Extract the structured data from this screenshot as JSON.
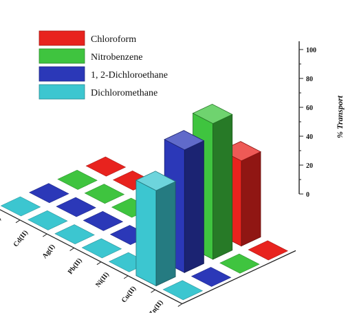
{
  "chart_data": {
    "type": "bar",
    "subtype": "3d-grouped-bar",
    "zlabel": "% Transport",
    "zlim": [
      0,
      100
    ],
    "zticks": [
      0,
      20,
      40,
      60,
      80,
      100
    ],
    "categories": [
      "Co(II)",
      "Cd(II)",
      "Ag(I)",
      "Pb(II)",
      "Ni(II)",
      "Cu(II)",
      "Zn(II)"
    ],
    "series": [
      {
        "name": "Chloroform",
        "color": "#e8231e",
        "values": [
          0,
          0,
          0,
          0,
          0,
          59,
          0
        ]
      },
      {
        "name": "Nitrobenzene",
        "color": "#3fc43f",
        "values": [
          0,
          0,
          0,
          0,
          0,
          94,
          0
        ]
      },
      {
        "name": "1, 2-Dichloroethane",
        "color": "#2b38b8",
        "values": [
          0,
          0,
          0,
          0,
          0,
          85,
          0
        ]
      },
      {
        "name": "Dichloromethane",
        "color": "#3cc6d0",
        "values": [
          0,
          0,
          0,
          0,
          0,
          66,
          0
        ]
      }
    ],
    "legend_position": "top-left"
  }
}
